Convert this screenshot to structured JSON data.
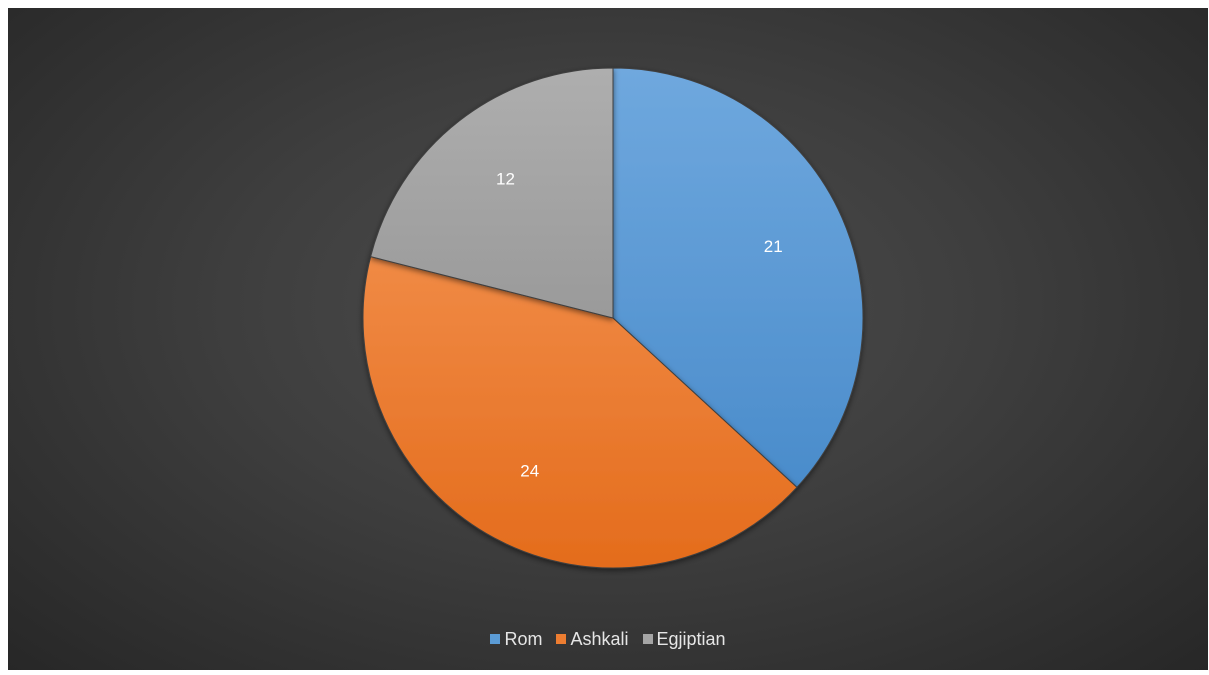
{
  "chart_data": {
    "type": "pie",
    "categories": [
      "Rom",
      "Ashkali",
      "Egjiptian"
    ],
    "values": [
      21,
      24,
      12
    ],
    "colors": [
      "#5b9bd5",
      "#ed7d31",
      "#a5a5a5"
    ],
    "show_data_labels": true,
    "start_angle_deg": 0,
    "direction": "clockwise",
    "legend_position": "bottom",
    "background": "dark-gray-gradient"
  },
  "legend": {
    "items": [
      {
        "label": "Rom",
        "color": "#5b9bd5"
      },
      {
        "label": "Ashkali",
        "color": "#ed7d31"
      },
      {
        "label": "Egjiptian",
        "color": "#a5a5a5"
      }
    ]
  }
}
